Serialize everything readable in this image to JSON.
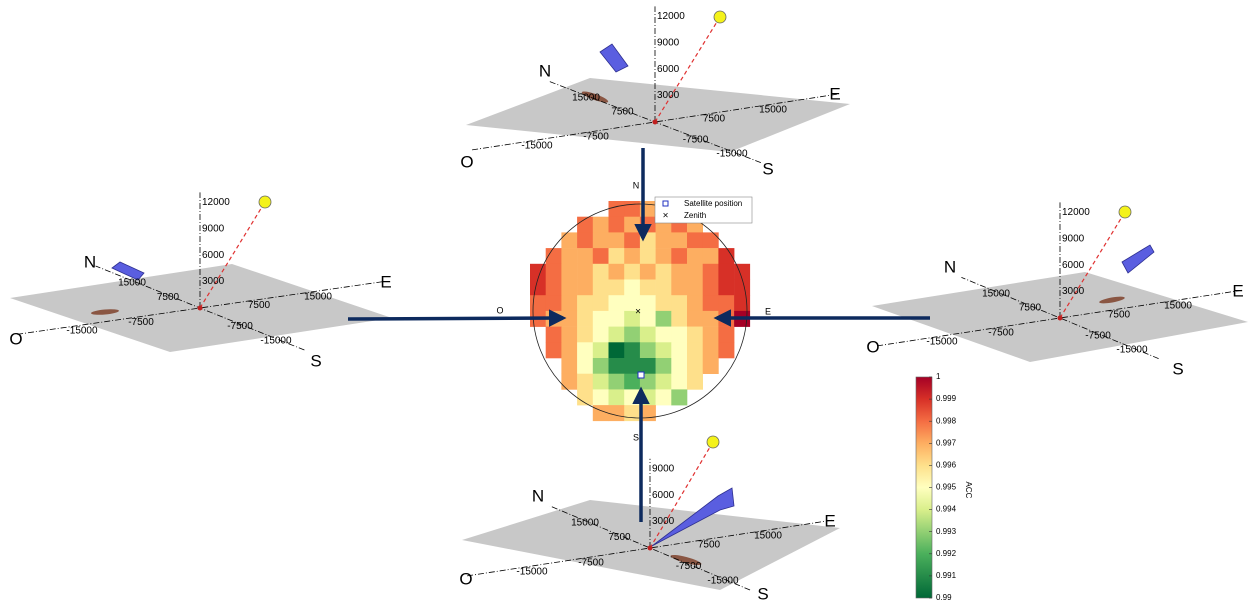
{
  "panels": [
    {
      "compass": {
        "north": "N",
        "east": "E",
        "south": "S",
        "west": "O"
      },
      "east_ticks": [
        -15000,
        -7500,
        7500,
        15000
      ],
      "north_ticks": [
        15000,
        7500,
        -7500,
        -15000
      ],
      "height_ticks": [
        3000,
        6000,
        9000,
        12000
      ]
    },
    {
      "compass": {
        "north": "N",
        "east": "E",
        "south": "S",
        "west": "O"
      },
      "east_ticks": [
        -15000,
        -7500,
        7500,
        15000
      ],
      "north_ticks": [
        15000,
        7500,
        -7500,
        -15000
      ],
      "height_ticks": [
        3000,
        6000,
        9000,
        12000
      ]
    },
    {
      "compass": {
        "north": "N",
        "east": "E",
        "south": "S",
        "west": "O"
      },
      "east_ticks": [
        -15000,
        -7500,
        7500,
        15000
      ],
      "north_ticks": [
        15000,
        7500,
        -7500,
        -15000
      ],
      "height_ticks": [
        3000,
        6000,
        9000,
        12000
      ]
    },
    {
      "compass": {
        "north": "N",
        "east": "E",
        "south": "S",
        "west": "O"
      },
      "east_ticks": [
        -15000,
        -7500,
        7500,
        15000
      ],
      "north_ticks": [
        15000,
        7500,
        -7500,
        -15000
      ],
      "height_ticks": [
        3000,
        6000,
        9000
      ]
    }
  ],
  "skymap": {
    "compass": {
      "north": "N",
      "east": "E",
      "south": "S",
      "west": "O"
    },
    "legend": [
      "Satellite position",
      "Zenith"
    ],
    "grid": [
      [
        null,
        null,
        null,
        null,
        null,
        0.998,
        0.998,
        0.997,
        0.998,
        null,
        null,
        null,
        null,
        null
      ],
      [
        null,
        null,
        null,
        0.998,
        0.997,
        0.998,
        0.997,
        0.998,
        0.997,
        0.998,
        0.997,
        null,
        null,
        null
      ],
      [
        null,
        null,
        0.997,
        0.998,
        0.997,
        0.997,
        0.998,
        0.996,
        0.997,
        0.997,
        0.998,
        0.998,
        null,
        null
      ],
      [
        null,
        0.998,
        0.997,
        0.997,
        0.998,
        0.996,
        0.997,
        0.996,
        0.997,
        0.998,
        0.997,
        0.997,
        0.999,
        null
      ],
      [
        0.999,
        0.998,
        0.997,
        0.997,
        0.996,
        0.997,
        0.996,
        0.997,
        0.996,
        0.997,
        0.997,
        0.998,
        0.999,
        0.999
      ],
      [
        0.999,
        0.998,
        0.997,
        0.997,
        0.996,
        0.996,
        0.995,
        0.996,
        0.996,
        0.997,
        0.997,
        0.998,
        0.999,
        0.999
      ],
      [
        0.998,
        0.998,
        0.997,
        0.996,
        0.996,
        0.995,
        0.995,
        0.995,
        0.996,
        0.996,
        0.997,
        0.998,
        0.998,
        0.999
      ],
      [
        0.998,
        0.997,
        0.997,
        0.996,
        0.995,
        0.995,
        0.994,
        0.995,
        0.993,
        0.996,
        0.997,
        0.997,
        0.998,
        1
      ],
      [
        null,
        0.998,
        0.997,
        0.996,
        0.995,
        0.994,
        0.993,
        0.994,
        0.995,
        0.995,
        0.996,
        0.997,
        0.998,
        null
      ],
      [
        null,
        0.998,
        0.997,
        0.995,
        0.994,
        0.99,
        0.991,
        0.993,
        0.994,
        0.995,
        0.996,
        0.997,
        0.998,
        null
      ],
      [
        null,
        null,
        0.997,
        0.995,
        0.993,
        0.991,
        0.991,
        0.991,
        0.993,
        0.995,
        0.996,
        0.997,
        null,
        null
      ],
      [
        null,
        null,
        0.997,
        0.996,
        0.994,
        0.993,
        0.992,
        0.993,
        0.994,
        0.995,
        0.996,
        null,
        null,
        null
      ],
      [
        null,
        null,
        null,
        0.996,
        0.995,
        0.994,
        0.995,
        0.994,
        0.995,
        0.993,
        null,
        null,
        null,
        null
      ],
      [
        null,
        null,
        null,
        null,
        0.997,
        0.997,
        0.996,
        0.997,
        null,
        null,
        null,
        null,
        null,
        null
      ]
    ],
    "colorbar": {
      "label": "ACC",
      "ticks": [
        0.99,
        0.991,
        0.992,
        0.993,
        0.994,
        0.995,
        0.996,
        0.997,
        0.998,
        0.999,
        1
      ]
    }
  }
}
